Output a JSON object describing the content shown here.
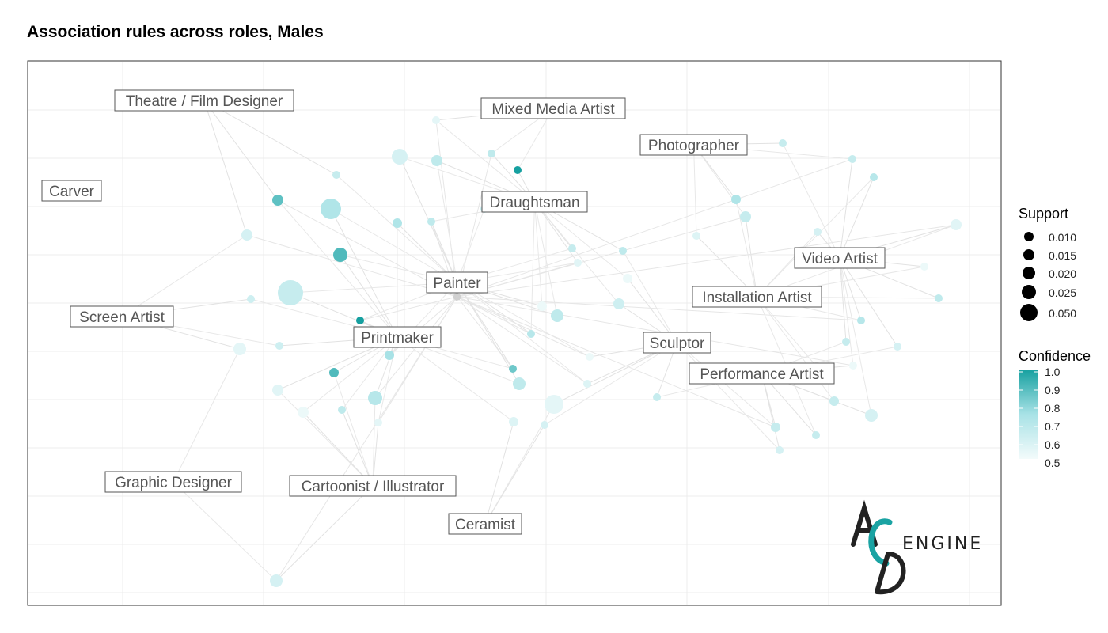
{
  "title": "Association rules across roles, Males",
  "roles": [
    {
      "id": "theatre",
      "label": "Theatre / Film Designer"
    },
    {
      "id": "mixed",
      "label": "Mixed Media Artist"
    },
    {
      "id": "photographer",
      "label": "Photographer"
    },
    {
      "id": "carver",
      "label": "Carver"
    },
    {
      "id": "draughtsman",
      "label": "Draughtsman"
    },
    {
      "id": "video",
      "label": "Video Artist"
    },
    {
      "id": "painter",
      "label": "Painter"
    },
    {
      "id": "installation",
      "label": "Installation Artist"
    },
    {
      "id": "screen",
      "label": "Screen Artist"
    },
    {
      "id": "printmaker",
      "label": "Printmaker"
    },
    {
      "id": "sculptor",
      "label": "Sculptor"
    },
    {
      "id": "performance",
      "label": "Performance Artist"
    },
    {
      "id": "graphic",
      "label": "Graphic Designer"
    },
    {
      "id": "cartoonist",
      "label": "Cartoonist / Illustrator"
    },
    {
      "id": "ceramist",
      "label": "Ceramist"
    }
  ],
  "legend": {
    "support": {
      "title": "Support",
      "values": [
        "0.010",
        "0.015",
        "0.020",
        "0.025",
        "0.050"
      ]
    },
    "confidence": {
      "title": "Confidence",
      "ticks": [
        "1.0",
        "0.9",
        "0.8",
        "0.7",
        "0.6",
        "0.5"
      ],
      "color_low": "#f3fbfb",
      "color_high": "#16a0a0"
    }
  },
  "colors": {
    "edge": "#d8d8d8",
    "accent": "#1aa3a3"
  },
  "logo": {
    "letters": "AC",
    "word": "ENGINE"
  }
}
